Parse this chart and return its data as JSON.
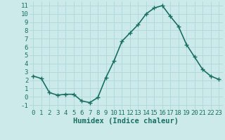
{
  "x": [
    0,
    1,
    2,
    3,
    4,
    5,
    6,
    7,
    8,
    9,
    10,
    11,
    12,
    13,
    14,
    15,
    16,
    17,
    18,
    19,
    20,
    21,
    22,
    23
  ],
  "y": [
    2.5,
    2.2,
    0.5,
    0.2,
    0.3,
    0.3,
    -0.5,
    -0.7,
    -0.1,
    2.3,
    4.3,
    6.7,
    7.7,
    8.7,
    10.0,
    10.7,
    11.0,
    9.7,
    8.5,
    6.3,
    4.8,
    3.3,
    2.5,
    2.1
  ],
  "line_color": "#1a7060",
  "bg_color": "#cdeaea",
  "grid_color": "#afd8d8",
  "xlabel": "Humidex (Indice chaleur)",
  "ylim": [
    -1.5,
    11.5
  ],
  "yticks": [
    -1,
    0,
    1,
    2,
    3,
    4,
    5,
    6,
    7,
    8,
    9,
    10,
    11
  ],
  "xticks": [
    0,
    1,
    2,
    3,
    4,
    5,
    6,
    7,
    8,
    9,
    10,
    11,
    12,
    13,
    14,
    15,
    16,
    17,
    18,
    19,
    20,
    21,
    22,
    23
  ],
  "marker": "+",
  "markersize": 4,
  "linewidth": 1.2,
  "xlabel_fontsize": 7.5,
  "tick_fontsize": 6.5
}
